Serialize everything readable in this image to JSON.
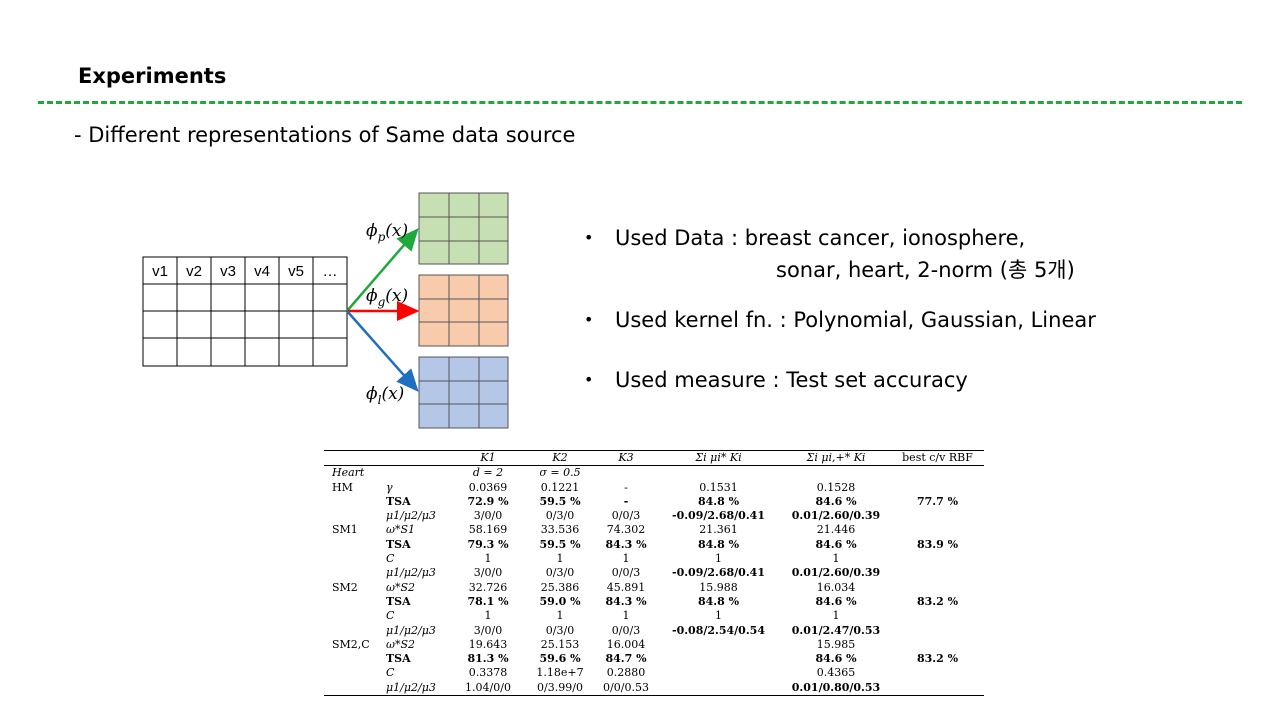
{
  "slide": {
    "title": "Experiments",
    "subtitle": "- Different representations of Same data source"
  },
  "diagram": {
    "table_headers": [
      "v1",
      "v2",
      "v3",
      "v4",
      "v5",
      "…"
    ],
    "arrow_labels": {
      "p": {
        "phi": "ϕ",
        "sub": "p",
        "arg": "(x)"
      },
      "g": {
        "phi": "ϕ",
        "sub": "g",
        "arg": "(x)"
      },
      "l": {
        "phi": "ϕ",
        "sub": "l",
        "arg": "(x)"
      }
    },
    "colors": {
      "green_fill": "#c6e0b4",
      "orange_fill": "#f8cbad",
      "blue_fill": "#b4c7e7",
      "green_arrow": "#1fa83b",
      "red_arrow": "#ff0000",
      "blue_arrow": "#1f6ebf"
    }
  },
  "bullets": {
    "marker": "•",
    "items": [
      {
        "text": "Used Data : breast cancer, ionosphere,",
        "cont": "sonar, heart, 2-norm (총 5개)"
      },
      {
        "text": "Used kernel fn. : Polynomial, Gaussian, Linear"
      },
      {
        "text": "Used measure : Test set accuracy"
      }
    ]
  },
  "results": {
    "headers": [
      "",
      "",
      "K1",
      "K2",
      "K3",
      "Σi μi* Ki",
      "Σi μi,+* Ki",
      "best c/v RBF"
    ],
    "rows": [
      [
        "Heart",
        "",
        "d = 2",
        "σ = 0.5",
        "",
        "",
        "",
        ""
      ],
      [
        "HM",
        "γ",
        "0.0369",
        "0.1221",
        "-",
        "0.1531",
        "0.1528",
        ""
      ],
      [
        "",
        "TSA",
        "72.9 %",
        "59.5 %",
        "-",
        "84.8 %",
        "84.6 %",
        "77.7 %"
      ],
      [
        "",
        "μ1/μ2/μ3",
        "3/0/0",
        "0/3/0",
        "0/0/3",
        "-0.09/2.68/0.41",
        "0.01/2.60/0.39",
        ""
      ],
      [
        "SM1",
        "ω*S1",
        "58.169",
        "33.536",
        "74.302",
        "21.361",
        "21.446",
        ""
      ],
      [
        "",
        "TSA",
        "79.3 %",
        "59.5 %",
        "84.3 %",
        "84.8 %",
        "84.6 %",
        "83.9 %"
      ],
      [
        "",
        "C",
        "1",
        "1",
        "1",
        "1",
        "1",
        ""
      ],
      [
        "",
        "μ1/μ2/μ3",
        "3/0/0",
        "0/3/0",
        "0/0/3",
        "-0.09/2.68/0.41",
        "0.01/2.60/0.39",
        ""
      ],
      [
        "SM2",
        "ω*S2",
        "32.726",
        "25.386",
        "45.891",
        "15.988",
        "16.034",
        ""
      ],
      [
        "",
        "TSA",
        "78.1 %",
        "59.0 %",
        "84.3 %",
        "84.8 %",
        "84.6 %",
        "83.2 %"
      ],
      [
        "",
        "C",
        "1",
        "1",
        "1",
        "1",
        "1",
        ""
      ],
      [
        "",
        "μ1/μ2/μ3",
        "3/0/0",
        "0/3/0",
        "0/0/3",
        "-0.08/2.54/0.54",
        "0.01/2.47/0.53",
        ""
      ],
      [
        "SM2,C",
        "ω*S2",
        "19.643",
        "25.153",
        "16.004",
        "",
        "15.985",
        ""
      ],
      [
        "",
        "TSA",
        "81.3 %",
        "59.6 %",
        "84.7 %",
        "",
        "84.6 %",
        "83.2 %"
      ],
      [
        "",
        "C",
        "0.3378",
        "1.18e+7",
        "0.2880",
        "",
        "0.4365",
        ""
      ],
      [
        "",
        "μ1/μ2/μ3",
        "1.04/0/0",
        "0/3.99/0",
        "0/0/0.53",
        "",
        "0.01/0.80/0.53",
        ""
      ]
    ]
  }
}
